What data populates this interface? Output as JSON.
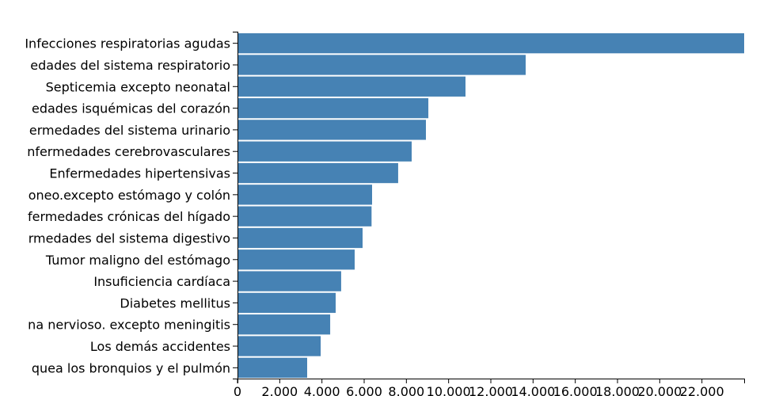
{
  "chart_data": {
    "type": "bar",
    "orientation": "horizontal",
    "color": "#4682b4",
    "categories": [
      "Infecciones respiratorias agudas",
      "edades del sistema respiratorio",
      "Septicemia excepto neonatal",
      "edades isquémicas del corazón",
      "ermedades del sistema urinario",
      "nfermedades cerebrovasculares",
      "Enfermedades hipertensivas",
      "oneo.excepto estómago y colón",
      "fermedades crónicas del hígado",
      "rmedades del sistema digestivo",
      "Tumor maligno del estómago",
      "Insuficiencia cardíaca",
      "Diabetes mellitus",
      "na nervioso. excepto meningitis",
      "Los demás accidentes",
      "quea los bronquios y el pulmón"
    ],
    "values": [
      24000,
      13650,
      10800,
      9040,
      8925,
      8250,
      7610,
      6375,
      6350,
      5925,
      5550,
      4910,
      4650,
      4390,
      3940,
      3300
    ],
    "xlim": [
      0,
      24000
    ],
    "xticks": [
      0,
      {
        "value": 2000,
        "label": "2.000"
      },
      {
        "value": 4000,
        "label": "4.000"
      },
      {
        "value": 6000,
        "label": "6.000"
      },
      {
        "value": 8000,
        "label": "8.000"
      },
      {
        "value": 10000,
        "label": "10.000"
      },
      {
        "value": 12000,
        "label": "12.000"
      },
      {
        "value": 14000,
        "label": "14.000"
      },
      {
        "value": 16000,
        "label": "16.000"
      },
      {
        "value": 18000,
        "label": "18.000"
      },
      {
        "value": 20000,
        "label": "20.000"
      },
      {
        "value": 22000,
        "label": "22.000"
      }
    ]
  }
}
